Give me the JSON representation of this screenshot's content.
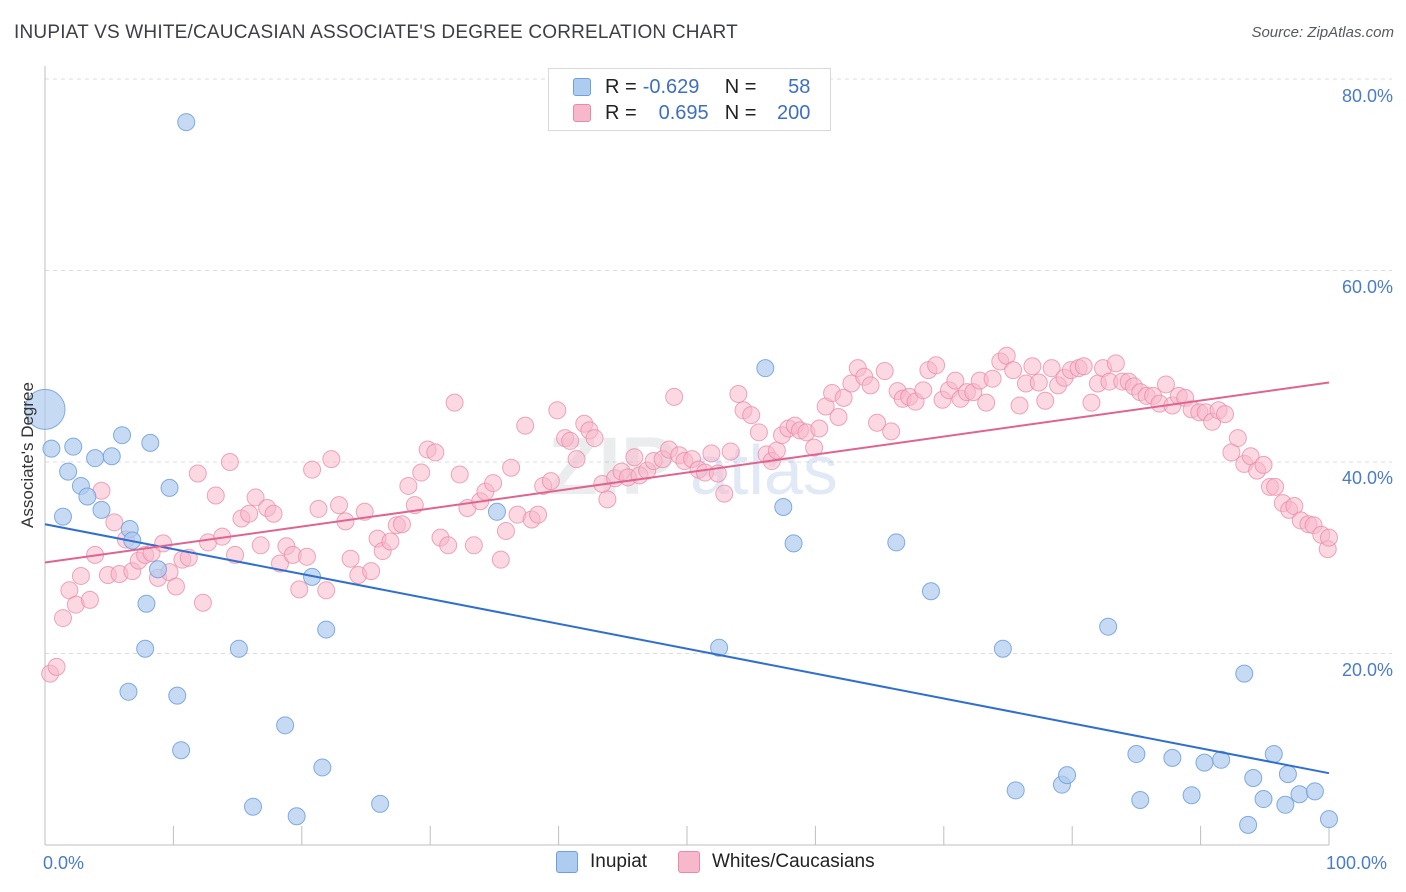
{
  "title": "INUPIAT VS WHITE/CAUCASIAN ASSOCIATE'S DEGREE CORRELATION CHART",
  "source": "Source: ZipAtlas.com",
  "legend": {
    "inupiat": {
      "r_label": "R =",
      "r": "-0.629",
      "n_label": "N =",
      "n": "58"
    },
    "whites": {
      "r_label": "R =",
      "r": "0.695",
      "n_label": "N =",
      "n": "200"
    }
  },
  "colors": {
    "inupiat_fill": "#aecbf0",
    "inupiat_stroke": "#6f9fdc",
    "inupiat_line": "#2f6fcf",
    "whites_fill": "#f7b8cb",
    "whites_stroke": "#e98aa8",
    "whites_line": "#e0648f"
  },
  "chart_data": {
    "type": "scatter",
    "title": "INUPIAT VS WHITE/CAUCASIAN ASSOCIATE'S DEGREE CORRELATION CHART",
    "xlabel": "",
    "ylabel": "Associate's Degree",
    "xlim": [
      0,
      100
    ],
    "ylim": [
      0,
      80
    ],
    "x_tick_labels": [
      "0.0%",
      "100.0%"
    ],
    "y_tick_labels": [
      "20.0%",
      "40.0%",
      "60.0%",
      "80.0%"
    ],
    "y_tick_values": [
      20,
      40,
      60,
      80
    ],
    "grid": true,
    "legend_position": "top-center",
    "series": [
      {
        "name": "Inupiat",
        "trend": [
          [
            0,
            33.5
          ],
          [
            100,
            7.5
          ]
        ],
        "points": [
          [
            0,
            45.5
          ],
          [
            0.5,
            41.4
          ],
          [
            1.4,
            34.3
          ],
          [
            1.8,
            39
          ],
          [
            2.2,
            41.6
          ],
          [
            2.8,
            37.5
          ],
          [
            3.3,
            36.4
          ],
          [
            3.9,
            40.4
          ],
          [
            4.4,
            35
          ],
          [
            5.2,
            40.6
          ],
          [
            6,
            42.8
          ],
          [
            6.5,
            16
          ],
          [
            6.6,
            33
          ],
          [
            6.8,
            31.8
          ],
          [
            7.8,
            20.5
          ],
          [
            7.9,
            25.2
          ],
          [
            8.2,
            42
          ],
          [
            8.8,
            28.8
          ],
          [
            9.7,
            37.3
          ],
          [
            10.3,
            15.6
          ],
          [
            10.6,
            9.9
          ],
          [
            11,
            75.5
          ],
          [
            15.1,
            20.5
          ],
          [
            16.2,
            4
          ],
          [
            18.7,
            12.5
          ],
          [
            19.6,
            3
          ],
          [
            20.8,
            28
          ],
          [
            21.6,
            8.1
          ],
          [
            21.9,
            22.5
          ],
          [
            26.1,
            4.3
          ],
          [
            35.2,
            34.8
          ],
          [
            52.5,
            20.6
          ],
          [
            56.1,
            49.8
          ],
          [
            57.5,
            35.3
          ],
          [
            58.3,
            31.5
          ],
          [
            66.3,
            31.6
          ],
          [
            69,
            26.5
          ],
          [
            74.6,
            20.5
          ],
          [
            75.6,
            5.7
          ],
          [
            79.2,
            6.3
          ],
          [
            79.6,
            7.3
          ],
          [
            82.8,
            22.8
          ],
          [
            85,
            9.5
          ],
          [
            85.3,
            4.7
          ],
          [
            87.8,
            9.1
          ],
          [
            89.3,
            5.2
          ],
          [
            90.3,
            8.6
          ],
          [
            91.6,
            8.9
          ],
          [
            93.4,
            17.9
          ],
          [
            93.7,
            2.1
          ],
          [
            94.1,
            7
          ],
          [
            94.9,
            4.8
          ],
          [
            95.7,
            9.5
          ],
          [
            96.6,
            4.2
          ],
          [
            96.8,
            7.4
          ],
          [
            97.7,
            5.3
          ],
          [
            98.9,
            5.6
          ],
          [
            100,
            2.7
          ]
        ]
      },
      {
        "name": "Whites/Caucasians",
        "trend": [
          [
            0,
            29.5
          ],
          [
            100,
            48.3
          ]
        ],
        "points": [
          [
            0.4,
            17.9
          ],
          [
            0.9,
            18.6
          ],
          [
            1.4,
            23.7
          ],
          [
            1.9,
            26.6
          ],
          [
            2.4,
            25.1
          ],
          [
            2.8,
            28.1
          ],
          [
            3.5,
            25.6
          ],
          [
            3.9,
            30.3
          ],
          [
            4.4,
            37
          ],
          [
            4.9,
            28.2
          ],
          [
            5.4,
            33.7
          ],
          [
            5.8,
            28.3
          ],
          [
            6.3,
            31.9
          ],
          [
            6.8,
            28.6
          ],
          [
            7.3,
            29.7
          ],
          [
            7.8,
            30.3
          ],
          [
            8.3,
            30.5
          ],
          [
            8.8,
            27.9
          ],
          [
            9.2,
            31.5
          ],
          [
            9.7,
            28.5
          ],
          [
            10.2,
            27
          ],
          [
            10.7,
            29.8
          ],
          [
            11.2,
            30
          ],
          [
            11.9,
            38.8
          ],
          [
            12.3,
            25.3
          ],
          [
            12.7,
            31.6
          ],
          [
            13.3,
            36.5
          ],
          [
            13.8,
            32.2
          ],
          [
            14.4,
            40
          ],
          [
            14.8,
            30.3
          ],
          [
            15.3,
            34.1
          ],
          [
            15.9,
            34.6
          ],
          [
            16.4,
            36.3
          ],
          [
            16.8,
            31.3
          ],
          [
            17.3,
            35.2
          ],
          [
            17.8,
            34.6
          ],
          [
            18.3,
            29.4
          ],
          [
            18.8,
            31.2
          ],
          [
            19.3,
            30.3
          ],
          [
            19.8,
            26.7
          ],
          [
            20.4,
            30.1
          ],
          [
            20.8,
            39.2
          ],
          [
            21.3,
            35.1
          ],
          [
            21.9,
            26.6
          ],
          [
            22.3,
            40.3
          ],
          [
            22.9,
            35.5
          ],
          [
            23.4,
            33.8
          ],
          [
            23.8,
            29.9
          ],
          [
            24.4,
            28.2
          ],
          [
            24.9,
            34.8
          ],
          [
            25.4,
            28.6
          ],
          [
            25.9,
            32
          ],
          [
            26.3,
            30.7
          ],
          [
            26.9,
            31.7
          ],
          [
            27.4,
            33.4
          ],
          [
            27.8,
            33.5
          ],
          [
            28.3,
            37.5
          ],
          [
            28.8,
            35.5
          ],
          [
            29.3,
            38.9
          ],
          [
            29.8,
            41.3
          ],
          [
            30.4,
            41
          ],
          [
            30.8,
            32.1
          ],
          [
            31.4,
            31.3
          ],
          [
            31.9,
            46.2
          ],
          [
            32.3,
            38.7
          ],
          [
            32.9,
            35.2
          ],
          [
            33.4,
            31.3
          ],
          [
            33.9,
            35.9
          ],
          [
            34.3,
            36.9
          ],
          [
            34.9,
            37.8
          ],
          [
            35.5,
            29.8
          ],
          [
            35.9,
            32.8
          ],
          [
            36.3,
            39.4
          ],
          [
            36.8,
            34.5
          ],
          [
            37.4,
            43.8
          ],
          [
            37.9,
            34
          ],
          [
            38.4,
            34.5
          ],
          [
            38.8,
            37.5
          ],
          [
            39.4,
            38
          ],
          [
            39.9,
            45.4
          ],
          [
            40.5,
            42.5
          ],
          [
            40.9,
            42.2
          ],
          [
            41.4,
            40.3
          ],
          [
            42,
            44
          ],
          [
            42.4,
            43.3
          ],
          [
            42.8,
            42.5
          ],
          [
            43.4,
            37.7
          ],
          [
            43.8,
            36.1
          ],
          [
            44.4,
            38.3
          ],
          [
            44.9,
            39
          ],
          [
            45.4,
            38.4
          ],
          [
            45.9,
            40.5
          ],
          [
            46.3,
            38.6
          ],
          [
            46.9,
            39.1
          ],
          [
            47.4,
            40.1
          ],
          [
            48.1,
            40.3
          ],
          [
            48.6,
            41.3
          ],
          [
            49,
            46.8
          ],
          [
            49.4,
            40.7
          ],
          [
            49.8,
            40.1
          ],
          [
            50.4,
            40.3
          ],
          [
            50.9,
            39.2
          ],
          [
            51.4,
            38.9
          ],
          [
            51.9,
            40.9
          ],
          [
            52.4,
            38.8
          ],
          [
            52.9,
            36.7
          ],
          [
            53.4,
            41.1
          ],
          [
            54,
            47.1
          ],
          [
            54.4,
            45.4
          ],
          [
            55,
            44.9
          ],
          [
            55.6,
            43.1
          ],
          [
            56.2,
            40.8
          ],
          [
            56.6,
            40.1
          ],
          [
            57,
            41.2
          ],
          [
            57.4,
            42.8
          ],
          [
            57.9,
            43.5
          ],
          [
            58.4,
            43.8
          ],
          [
            58.8,
            43.3
          ],
          [
            59.3,
            43.1
          ],
          [
            59.9,
            41.5
          ],
          [
            60.3,
            43.5
          ],
          [
            60.8,
            45.8
          ],
          [
            61.3,
            47.2
          ],
          [
            61.8,
            44.7
          ],
          [
            62.2,
            46.7
          ],
          [
            62.8,
            48.2
          ],
          [
            63.3,
            49.8
          ],
          [
            63.8,
            48.9
          ],
          [
            64.3,
            48
          ],
          [
            64.8,
            44.1
          ],
          [
            65.4,
            49.5
          ],
          [
            65.9,
            43.2
          ],
          [
            66.4,
            47.4
          ],
          [
            66.8,
            46.6
          ],
          [
            67.3,
            46.8
          ],
          [
            67.8,
            46.3
          ],
          [
            68.4,
            47.5
          ],
          [
            68.8,
            49.6
          ],
          [
            69.4,
            50.1
          ],
          [
            69.9,
            46.5
          ],
          [
            70.4,
            47.5
          ],
          [
            70.9,
            48.5
          ],
          [
            71.3,
            46.6
          ],
          [
            71.8,
            47.3
          ],
          [
            72.3,
            47.3
          ],
          [
            72.8,
            48.5
          ],
          [
            73.3,
            46.2
          ],
          [
            73.8,
            48.7
          ],
          [
            74.4,
            50.5
          ],
          [
            74.9,
            51.1
          ],
          [
            75.4,
            49.6
          ],
          [
            75.9,
            45.9
          ],
          [
            76.4,
            48.2
          ],
          [
            76.9,
            50
          ],
          [
            77.4,
            48.3
          ],
          [
            77.9,
            46.4
          ],
          [
            78.4,
            49.8
          ],
          [
            78.9,
            48
          ],
          [
            79.4,
            48.8
          ],
          [
            79.9,
            49.6
          ],
          [
            80.5,
            49.8
          ],
          [
            80.9,
            50
          ],
          [
            81.5,
            46.2
          ],
          [
            82,
            48.2
          ],
          [
            82.4,
            49.8
          ],
          [
            82.9,
            48.4
          ],
          [
            83.4,
            50.3
          ],
          [
            83.9,
            48.4
          ],
          [
            84.4,
            48.4
          ],
          [
            84.8,
            47.9
          ],
          [
            85.3,
            47.3
          ],
          [
            85.8,
            46.9
          ],
          [
            86.3,
            46.9
          ],
          [
            86.8,
            46.1
          ],
          [
            87.3,
            48.1
          ],
          [
            87.8,
            45.9
          ],
          [
            88.3,
            46.9
          ],
          [
            88.8,
            46.7
          ],
          [
            89.3,
            45.5
          ],
          [
            89.9,
            45.2
          ],
          [
            90.4,
            45.2
          ],
          [
            90.9,
            44.2
          ],
          [
            91.4,
            45.4
          ],
          [
            91.9,
            45
          ],
          [
            92.4,
            41
          ],
          [
            92.9,
            42.5
          ],
          [
            93.4,
            39.8
          ],
          [
            93.9,
            40.6
          ],
          [
            94.4,
            39.1
          ],
          [
            94.9,
            39.7
          ],
          [
            95.4,
            37.4
          ],
          [
            95.8,
            37.4
          ],
          [
            96.4,
            35.7
          ],
          [
            96.9,
            35
          ],
          [
            97.3,
            35.4
          ],
          [
            97.8,
            33.9
          ],
          [
            98.4,
            33.5
          ],
          [
            98.8,
            33.4
          ],
          [
            99.4,
            32.4
          ],
          [
            99.9,
            30.9
          ],
          [
            100,
            32.1
          ]
        ]
      }
    ]
  }
}
